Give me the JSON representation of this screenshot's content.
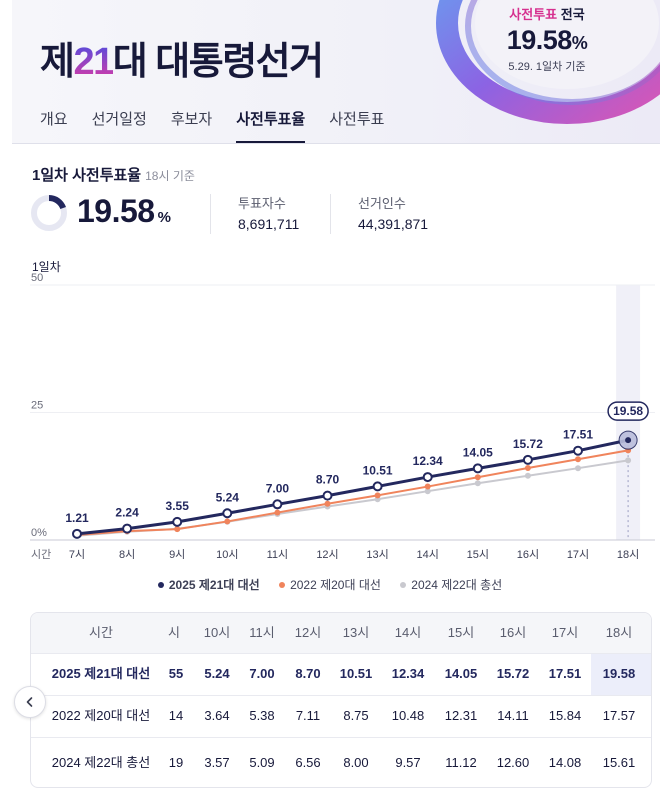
{
  "header": {
    "title_prefix": "제",
    "title_num": "21",
    "title_suffix": "대 대통령선거",
    "badge": {
      "label_highlight": "사전투표",
      "label_rest": " 전국",
      "rate": "19.58",
      "pct": "%",
      "date": "5.29. 1일차 기준"
    }
  },
  "tabs": [
    {
      "label": "개요",
      "active": false
    },
    {
      "label": "선거일정",
      "active": false
    },
    {
      "label": "후보자",
      "active": false
    },
    {
      "label": "사전투표율",
      "active": true
    },
    {
      "label": "사전투표",
      "active": false
    }
  ],
  "summary": {
    "title": "1일차 사전투표율",
    "subtitle": "18시 기준",
    "rate": "19.58",
    "pct": "%",
    "voters_label": "투표자수",
    "voters_value": "8,691,711",
    "electors_label": "선거인수",
    "electors_value": "44,391,871"
  },
  "colors": {
    "navy": "#23285e",
    "orange": "#f0845c",
    "gray": "#c9c9cf",
    "accent": "#d6308f"
  },
  "chart_data": {
    "type": "line",
    "label": "1일차",
    "x_prefix": "시간",
    "categories": [
      "7시",
      "8시",
      "9시",
      "10시",
      "11시",
      "12시",
      "13시",
      "14시",
      "15시",
      "16시",
      "17시",
      "18시"
    ],
    "ylim": [
      0,
      50
    ],
    "yticks": [
      "0%",
      "25",
      "50"
    ],
    "series": [
      {
        "name": "2025 제21대 대선",
        "values": [
          1.21,
          2.24,
          3.55,
          5.24,
          7.0,
          8.7,
          10.51,
          12.34,
          14.05,
          15.72,
          17.51,
          19.58
        ]
      },
      {
        "name": "2022 제20대 대선",
        "values": [
          0.99,
          1.74,
          2.14,
          3.64,
          5.38,
          7.11,
          8.75,
          10.48,
          12.31,
          14.11,
          15.84,
          17.57
        ]
      },
      {
        "name": "2024 제22대 총선",
        "values": [
          0.84,
          1.61,
          2.19,
          3.57,
          5.09,
          6.56,
          8.0,
          9.57,
          11.12,
          12.6,
          14.08,
          15.61
        ]
      }
    ],
    "data_labels": [
      "1.21",
      "2.24",
      "3.55",
      "5.24",
      "7.00",
      "8.70",
      "10.51",
      "12.34",
      "14.05",
      "15.72",
      "17.51",
      "19.58"
    ]
  },
  "table": {
    "header_label": "시간",
    "columns": [
      "시",
      "10시",
      "11시",
      "12시",
      "13시",
      "14시",
      "15시",
      "16시",
      "17시",
      "18시"
    ],
    "rows": [
      {
        "label": "2025 제21대 대선",
        "values": [
          "55",
          "5.24",
          "7.00",
          "8.70",
          "10.51",
          "12.34",
          "14.05",
          "15.72",
          "17.51",
          "19.58"
        ]
      },
      {
        "label": "2022 제20대 대선",
        "values": [
          "14",
          "3.64",
          "5.38",
          "7.11",
          "8.75",
          "10.48",
          "12.31",
          "14.11",
          "15.84",
          "17.57"
        ]
      },
      {
        "label": "2024 제22대 총선",
        "values": [
          "19",
          "3.57",
          "5.09",
          "6.56",
          "8.00",
          "9.57",
          "11.12",
          "12.60",
          "14.08",
          "15.61"
        ]
      }
    ]
  }
}
